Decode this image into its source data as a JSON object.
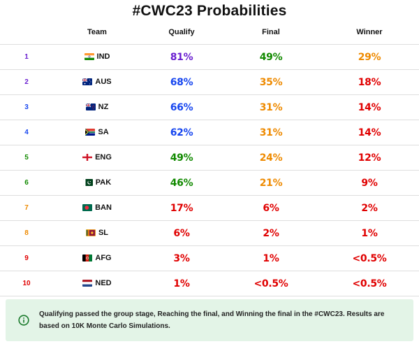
{
  "title": "#CWC23 Probabilities",
  "columns": {
    "rank": "",
    "team": "Team",
    "qualify": "Qualify",
    "final": "Final",
    "winner": "Winner"
  },
  "colors": {
    "purple": "#6a1fd0",
    "blue": "#1746ef",
    "green": "#128a00",
    "orange": "#ee8a00",
    "red": "#e00000"
  },
  "rows": [
    {
      "rank": "1",
      "team": "IND",
      "flag": "india-flag",
      "qualify": "81%",
      "final": "49%",
      "winner": "29%",
      "rank_color": "#6a1fd0",
      "qualify_color": "#6a1fd0",
      "final_color": "#128a00",
      "winner_color": "#ee8a00"
    },
    {
      "rank": "2",
      "team": "AUS",
      "flag": "australia-flag",
      "qualify": "68%",
      "final": "35%",
      "winner": "18%",
      "rank_color": "#6a1fd0",
      "qualify_color": "#1746ef",
      "final_color": "#ee8a00",
      "winner_color": "#e00000"
    },
    {
      "rank": "3",
      "team": "NZ",
      "flag": "new-zealand-flag",
      "qualify": "66%",
      "final": "31%",
      "winner": "14%",
      "rank_color": "#1746ef",
      "qualify_color": "#1746ef",
      "final_color": "#ee8a00",
      "winner_color": "#e00000"
    },
    {
      "rank": "4",
      "team": "SA",
      "flag": "south-africa-flag",
      "qualify": "62%",
      "final": "31%",
      "winner": "14%",
      "rank_color": "#1746ef",
      "qualify_color": "#1746ef",
      "final_color": "#ee8a00",
      "winner_color": "#e00000"
    },
    {
      "rank": "5",
      "team": "ENG",
      "flag": "england-flag",
      "qualify": "49%",
      "final": "24%",
      "winner": "12%",
      "rank_color": "#128a00",
      "qualify_color": "#128a00",
      "final_color": "#ee8a00",
      "winner_color": "#e00000"
    },
    {
      "rank": "6",
      "team": "PAK",
      "flag": "pakistan-flag",
      "qualify": "46%",
      "final": "21%",
      "winner": "9%",
      "rank_color": "#128a00",
      "qualify_color": "#128a00",
      "final_color": "#ee8a00",
      "winner_color": "#e00000"
    },
    {
      "rank": "7",
      "team": "BAN",
      "flag": "bangladesh-flag",
      "qualify": "17%",
      "final": "6%",
      "winner": "2%",
      "rank_color": "#ee8a00",
      "qualify_color": "#e00000",
      "final_color": "#e00000",
      "winner_color": "#e00000"
    },
    {
      "rank": "8",
      "team": "SL",
      "flag": "sri-lanka-flag",
      "qualify": "6%",
      "final": "2%",
      "winner": "1%",
      "rank_color": "#ee8a00",
      "qualify_color": "#e00000",
      "final_color": "#e00000",
      "winner_color": "#e00000"
    },
    {
      "rank": "9",
      "team": "AFG",
      "flag": "afghanistan-flag",
      "qualify": "3%",
      "final": "1%",
      "winner": "<0.5%",
      "rank_color": "#e00000",
      "qualify_color": "#e00000",
      "final_color": "#e00000",
      "winner_color": "#e00000"
    },
    {
      "rank": "10",
      "team": "NED",
      "flag": "netherlands-flag",
      "qualify": "1%",
      "final": "<0.5%",
      "winner": "<0.5%",
      "rank_color": "#e00000",
      "qualify_color": "#e00000",
      "final_color": "#e00000",
      "winner_color": "#e00000"
    }
  ],
  "note": {
    "icon": "info-icon",
    "icon_color": "#1a7a2c",
    "background": "#e3f4e7",
    "text": "Qualifying passed the group stage, Reaching the final, and Winning the final in the #CWC23. Results are based on 10K Monte Carlo Simulations."
  }
}
